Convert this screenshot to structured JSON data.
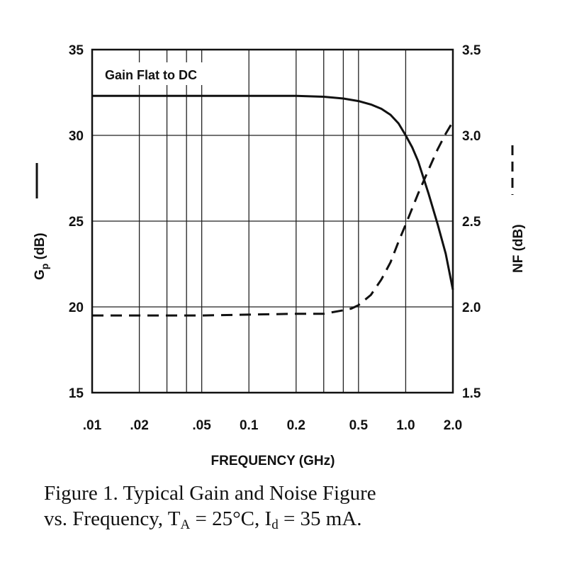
{
  "chart_data": {
    "type": "line",
    "x_scale": "log",
    "xlim": [
      0.01,
      2.0
    ],
    "x_ticks": [
      {
        "value": 0.01,
        "label": ".01"
      },
      {
        "value": 0.02,
        "label": ".02"
      },
      {
        "value": 0.05,
        "label": ".05"
      },
      {
        "value": 0.1,
        "label": "0.1"
      },
      {
        "value": 0.2,
        "label": "0.2"
      },
      {
        "value": 0.5,
        "label": "0.5"
      },
      {
        "value": 1.0,
        "label": "1.0"
      },
      {
        "value": 2.0,
        "label": "2.0"
      }
    ],
    "x_gridlines": [
      0.01,
      0.02,
      0.03,
      0.04,
      0.05,
      0.1,
      0.2,
      0.3,
      0.4,
      0.5,
      1.0,
      2.0
    ],
    "xlabel": "FREQUENCY (GHz)",
    "ylim_left": [
      15,
      35
    ],
    "y_ticks_left": [
      15,
      20,
      25,
      30,
      35
    ],
    "ylabel_left": "G",
    "ylabel_left_sub": "p",
    "ylabel_left_unit": " (dB)",
    "ylim_right": [
      1.5,
      3.5
    ],
    "y_ticks_right": [
      "1.5",
      "2.0",
      "2.5",
      "3.0",
      "3.5"
    ],
    "ylabel_right": "NF (dB)",
    "grid": true,
    "annotation": "Gain Flat to DC",
    "series": [
      {
        "name": "Gp (dB)",
        "axis": "left",
        "style": "solid",
        "x": [
          0.01,
          0.05,
          0.1,
          0.2,
          0.3,
          0.4,
          0.5,
          0.6,
          0.7,
          0.8,
          0.9,
          1.0,
          1.1,
          1.2,
          1.4,
          1.6,
          1.8,
          2.0
        ],
        "y": [
          32.3,
          32.3,
          32.3,
          32.3,
          32.25,
          32.15,
          32.0,
          31.8,
          31.55,
          31.2,
          30.7,
          30.0,
          29.3,
          28.5,
          26.6,
          24.8,
          23.1,
          21.0
        ]
      },
      {
        "name": "NF (dB)",
        "axis": "right",
        "style": "dashed",
        "x": [
          0.01,
          0.05,
          0.1,
          0.2,
          0.3,
          0.4,
          0.45,
          0.5,
          0.6,
          0.7,
          0.8,
          0.9,
          1.0,
          1.2,
          1.4,
          1.6,
          1.8,
          2.0
        ],
        "y": [
          1.95,
          1.95,
          1.955,
          1.96,
          1.96,
          1.98,
          1.99,
          2.01,
          2.07,
          2.16,
          2.26,
          2.38,
          2.48,
          2.66,
          2.8,
          2.92,
          3.01,
          3.08
        ]
      }
    ]
  },
  "caption": {
    "line1": "Figure 1.  Typical Gain and Noise Figure",
    "line2_a": "vs. Frequency, T",
    "line2_sub_a": "A",
    "line2_b": " = 25°C, I",
    "line2_sub_b": "d",
    "line2_c": " = 35 mA."
  }
}
